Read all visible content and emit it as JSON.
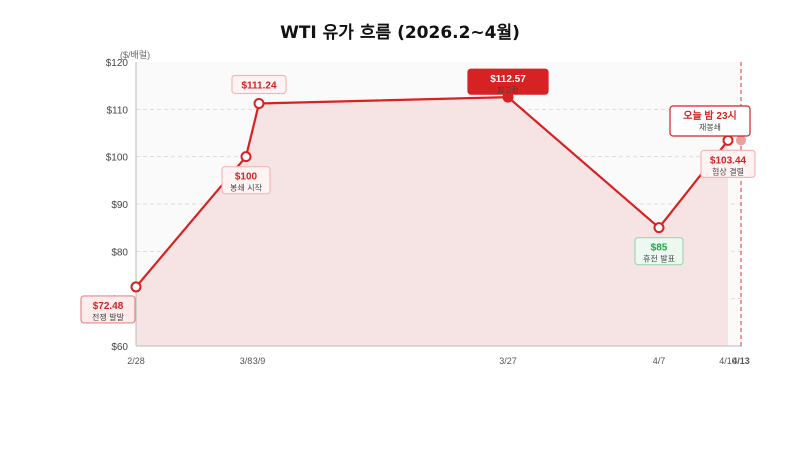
{
  "title": "WTI 유가 흐름 (2026.2~4월)",
  "colors": {
    "line": "#d62222",
    "area": "#f6e4e5",
    "green": "#1ea64a",
    "today": "#e03b3b",
    "grid": "#dddddd"
  },
  "chart_data": {
    "type": "line",
    "title": "WTI 유가 흐름 (2026.2~4월)",
    "ylabel": "($/배럴)",
    "ylim": [
      60,
      120
    ],
    "yticks": [
      "$60",
      "$70",
      "$80",
      "$90",
      "$100",
      "$110",
      "$120"
    ],
    "grid": true,
    "x_ticks": [
      "2/28",
      "3/8",
      "3/9",
      "3/27",
      "4/7",
      "4/10",
      "4/13"
    ],
    "series": [
      {
        "points": [
          {
            "date": "2/28",
            "value": 72.48
          },
          {
            "date": "3/8",
            "value": 100
          },
          {
            "date": "3/9",
            "value": 111.24
          },
          {
            "date": "3/27",
            "value": 112.57
          },
          {
            "date": "4/7",
            "value": 85
          },
          {
            "date": "4/10",
            "value": 103.44
          },
          {
            "date": "4/13",
            "value": 103.44
          }
        ]
      }
    ],
    "annotations": [
      {
        "point": 0,
        "value": "$72.48",
        "sub": "전쟁 발발",
        "style": "red",
        "position": "below"
      },
      {
        "point": 1,
        "value": "$100",
        "sub": "봉쇄 시작",
        "style": "light",
        "position": "below"
      },
      {
        "point": 2,
        "value": "$111.24",
        "sub": "",
        "style": "light",
        "position": "above"
      },
      {
        "point": 3,
        "value": "$112.57",
        "sub": "최고점",
        "style": "solid",
        "position": "above"
      },
      {
        "point": 4,
        "value": "$85",
        "sub": "휴전 발표",
        "style": "green",
        "position": "below"
      },
      {
        "point": 5,
        "value": "$103.44",
        "sub": "협상 결렬",
        "style": "light",
        "position": "below"
      }
    ],
    "today_marker": {
      "date": "4/13",
      "value": "오늘 밤 23시",
      "sub": "재봉쇄"
    }
  }
}
